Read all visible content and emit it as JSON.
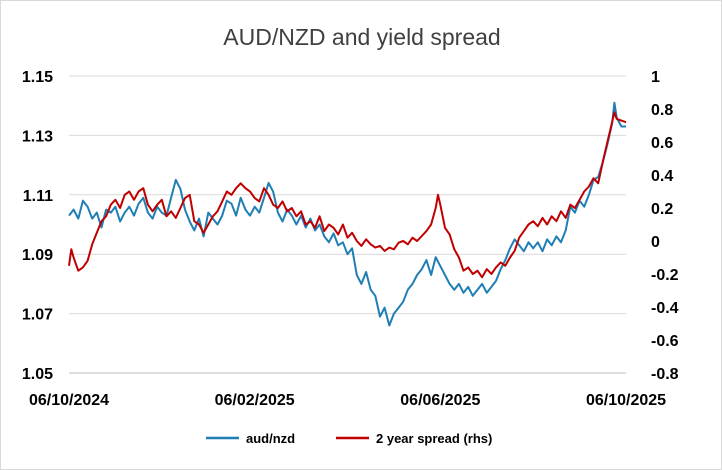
{
  "chart_data": {
    "type": "line",
    "title": "AUD/NZD and yield spread",
    "grid": true,
    "legend_position": "bottom",
    "x_tick_labels": [
      "06/10/2024",
      "06/02/2025",
      "06/06/2025",
      "06/10/2025"
    ],
    "y_left": {
      "ticks": [
        "1.05",
        "1.07",
        "1.09",
        "1.11",
        "1.13",
        "1.15"
      ],
      "range": [
        1.05,
        1.15
      ]
    },
    "y_right": {
      "ticks": [
        "-0.8",
        "-0.6",
        "-0.4",
        "-0.2",
        "0",
        "0.2",
        "0.4",
        "0.6",
        "0.8",
        "1"
      ],
      "range": [
        -0.8,
        1.0
      ]
    },
    "x_range": [
      0,
      12
    ],
    "series": [
      {
        "name": "aud/nzd",
        "axis": "left",
        "color": "#1f7fb4",
        "points": [
          [
            0.0,
            1.103
          ],
          [
            0.1,
            1.105
          ],
          [
            0.2,
            1.102
          ],
          [
            0.3,
            1.108
          ],
          [
            0.4,
            1.106
          ],
          [
            0.5,
            1.102
          ],
          [
            0.6,
            1.104
          ],
          [
            0.7,
            1.099
          ],
          [
            0.8,
            1.105
          ],
          [
            0.9,
            1.104
          ],
          [
            1.0,
            1.106
          ],
          [
            1.1,
            1.101
          ],
          [
            1.2,
            1.104
          ],
          [
            1.3,
            1.106
          ],
          [
            1.4,
            1.103
          ],
          [
            1.5,
            1.107
          ],
          [
            1.6,
            1.109
          ],
          [
            1.7,
            1.104
          ],
          [
            1.8,
            1.102
          ],
          [
            1.9,
            1.106
          ],
          [
            2.0,
            1.104
          ],
          [
            2.1,
            1.103
          ],
          [
            2.2,
            1.109
          ],
          [
            2.3,
            1.115
          ],
          [
            2.4,
            1.112
          ],
          [
            2.5,
            1.105
          ],
          [
            2.6,
            1.101
          ],
          [
            2.7,
            1.098
          ],
          [
            2.8,
            1.102
          ],
          [
            2.9,
            1.096
          ],
          [
            3.0,
            1.104
          ],
          [
            3.1,
            1.102
          ],
          [
            3.2,
            1.1
          ],
          [
            3.3,
            1.103
          ],
          [
            3.4,
            1.108
          ],
          [
            3.5,
            1.107
          ],
          [
            3.6,
            1.103
          ],
          [
            3.7,
            1.109
          ],
          [
            3.8,
            1.105
          ],
          [
            3.9,
            1.103
          ],
          [
            4.0,
            1.106
          ],
          [
            4.1,
            1.104
          ],
          [
            4.2,
            1.109
          ],
          [
            4.3,
            1.114
          ],
          [
            4.4,
            1.111
          ],
          [
            4.5,
            1.104
          ],
          [
            4.6,
            1.101
          ],
          [
            4.7,
            1.105
          ],
          [
            4.8,
            1.103
          ],
          [
            4.9,
            1.1
          ],
          [
            5.0,
            1.103
          ],
          [
            5.1,
            1.099
          ],
          [
            5.2,
            1.102
          ],
          [
            5.3,
            1.098
          ],
          [
            5.4,
            1.1
          ],
          [
            5.5,
            1.096
          ],
          [
            5.6,
            1.094
          ],
          [
            5.7,
            1.097
          ],
          [
            5.8,
            1.093
          ],
          [
            5.9,
            1.094
          ],
          [
            6.0,
            1.09
          ],
          [
            6.1,
            1.092
          ],
          [
            6.2,
            1.083
          ],
          [
            6.3,
            1.08
          ],
          [
            6.4,
            1.084
          ],
          [
            6.5,
            1.078
          ],
          [
            6.6,
            1.076
          ],
          [
            6.7,
            1.069
          ],
          [
            6.8,
            1.072
          ],
          [
            6.9,
            1.066
          ],
          [
            7.0,
            1.07
          ],
          [
            7.1,
            1.072
          ],
          [
            7.2,
            1.074
          ],
          [
            7.3,
            1.078
          ],
          [
            7.4,
            1.08
          ],
          [
            7.5,
            1.083
          ],
          [
            7.6,
            1.085
          ],
          [
            7.7,
            1.088
          ],
          [
            7.8,
            1.083
          ],
          [
            7.9,
            1.089
          ],
          [
            8.0,
            1.086
          ],
          [
            8.1,
            1.083
          ],
          [
            8.2,
            1.08
          ],
          [
            8.3,
            1.078
          ],
          [
            8.4,
            1.08
          ],
          [
            8.5,
            1.077
          ],
          [
            8.6,
            1.079
          ],
          [
            8.7,
            1.076
          ],
          [
            8.8,
            1.078
          ],
          [
            8.9,
            1.08
          ],
          [
            9.0,
            1.077
          ],
          [
            9.1,
            1.079
          ],
          [
            9.2,
            1.081
          ],
          [
            9.3,
            1.085
          ],
          [
            9.4,
            1.088
          ],
          [
            9.5,
            1.092
          ],
          [
            9.6,
            1.095
          ],
          [
            9.7,
            1.093
          ],
          [
            9.8,
            1.091
          ],
          [
            9.9,
            1.094
          ],
          [
            10.0,
            1.092
          ],
          [
            10.1,
            1.094
          ],
          [
            10.2,
            1.091
          ],
          [
            10.3,
            1.095
          ],
          [
            10.4,
            1.093
          ],
          [
            10.5,
            1.096
          ],
          [
            10.6,
            1.094
          ],
          [
            10.7,
            1.098
          ],
          [
            10.8,
            1.106
          ],
          [
            10.9,
            1.104
          ],
          [
            11.0,
            1.108
          ],
          [
            11.1,
            1.106
          ],
          [
            11.2,
            1.11
          ],
          [
            11.3,
            1.115
          ],
          [
            11.4,
            1.116
          ],
          [
            11.5,
            1.121
          ],
          [
            11.6,
            1.127
          ],
          [
            11.7,
            1.134
          ],
          [
            11.75,
            1.141
          ],
          [
            11.8,
            1.136
          ],
          [
            11.9,
            1.133
          ],
          [
            12.0,
            1.133
          ]
        ]
      },
      {
        "name": "2 year spread (rhs)",
        "axis": "right",
        "color": "#c00000",
        "points": [
          [
            0.0,
            -0.15
          ],
          [
            0.05,
            -0.05
          ],
          [
            0.1,
            -0.1
          ],
          [
            0.2,
            -0.18
          ],
          [
            0.3,
            -0.16
          ],
          [
            0.4,
            -0.12
          ],
          [
            0.5,
            -0.02
          ],
          [
            0.6,
            0.05
          ],
          [
            0.7,
            0.12
          ],
          [
            0.8,
            0.15
          ],
          [
            0.9,
            0.22
          ],
          [
            1.0,
            0.25
          ],
          [
            1.1,
            0.2
          ],
          [
            1.2,
            0.28
          ],
          [
            1.3,
            0.3
          ],
          [
            1.4,
            0.25
          ],
          [
            1.5,
            0.3
          ],
          [
            1.6,
            0.32
          ],
          [
            1.7,
            0.22
          ],
          [
            1.8,
            0.18
          ],
          [
            1.9,
            0.22
          ],
          [
            2.0,
            0.25
          ],
          [
            2.1,
            0.15
          ],
          [
            2.2,
            0.18
          ],
          [
            2.3,
            0.14
          ],
          [
            2.4,
            0.2
          ],
          [
            2.5,
            0.26
          ],
          [
            2.6,
            0.28
          ],
          [
            2.7,
            0.12
          ],
          [
            2.8,
            0.1
          ],
          [
            2.9,
            0.05
          ],
          [
            3.0,
            0.1
          ],
          [
            3.1,
            0.15
          ],
          [
            3.2,
            0.18
          ],
          [
            3.3,
            0.24
          ],
          [
            3.4,
            0.3
          ],
          [
            3.5,
            0.28
          ],
          [
            3.6,
            0.32
          ],
          [
            3.7,
            0.35
          ],
          [
            3.8,
            0.32
          ],
          [
            3.9,
            0.3
          ],
          [
            4.0,
            0.26
          ],
          [
            4.1,
            0.24
          ],
          [
            4.2,
            0.32
          ],
          [
            4.3,
            0.28
          ],
          [
            4.4,
            0.22
          ],
          [
            4.5,
            0.2
          ],
          [
            4.6,
            0.24
          ],
          [
            4.7,
            0.18
          ],
          [
            4.8,
            0.2
          ],
          [
            4.9,
            0.15
          ],
          [
            5.0,
            0.18
          ],
          [
            5.1,
            0.1
          ],
          [
            5.2,
            0.12
          ],
          [
            5.3,
            0.08
          ],
          [
            5.4,
            0.15
          ],
          [
            5.5,
            0.06
          ],
          [
            5.6,
            0.1
          ],
          [
            5.7,
            0.08
          ],
          [
            5.8,
            0.04
          ],
          [
            5.9,
            0.1
          ],
          [
            6.0,
            0.02
          ],
          [
            6.1,
            0.05
          ],
          [
            6.2,
            0.0
          ],
          [
            6.3,
            -0.03
          ],
          [
            6.4,
            0.01
          ],
          [
            6.5,
            -0.02
          ],
          [
            6.6,
            -0.04
          ],
          [
            6.7,
            -0.03
          ],
          [
            6.8,
            -0.06
          ],
          [
            6.9,
            -0.04
          ],
          [
            7.0,
            -0.05
          ],
          [
            7.1,
            -0.01
          ],
          [
            7.2,
            0.0
          ],
          [
            7.3,
            -0.02
          ],
          [
            7.4,
            0.02
          ],
          [
            7.5,
            0.0
          ],
          [
            7.6,
            0.03
          ],
          [
            7.7,
            0.06
          ],
          [
            7.8,
            0.1
          ],
          [
            7.9,
            0.2
          ],
          [
            7.95,
            0.28
          ],
          [
            8.0,
            0.22
          ],
          [
            8.1,
            0.08
          ],
          [
            8.2,
            0.04
          ],
          [
            8.3,
            -0.05
          ],
          [
            8.4,
            -0.1
          ],
          [
            8.5,
            -0.18
          ],
          [
            8.6,
            -0.16
          ],
          [
            8.7,
            -0.2
          ],
          [
            8.8,
            -0.18
          ],
          [
            8.9,
            -0.22
          ],
          [
            9.0,
            -0.17
          ],
          [
            9.1,
            -0.2
          ],
          [
            9.2,
            -0.16
          ],
          [
            9.3,
            -0.13
          ],
          [
            9.4,
            -0.15
          ],
          [
            9.5,
            -0.1
          ],
          [
            9.6,
            -0.06
          ],
          [
            9.7,
            0.02
          ],
          [
            9.8,
            0.06
          ],
          [
            9.9,
            0.1
          ],
          [
            10.0,
            0.12
          ],
          [
            10.1,
            0.09
          ],
          [
            10.2,
            0.14
          ],
          [
            10.3,
            0.1
          ],
          [
            10.4,
            0.15
          ],
          [
            10.5,
            0.12
          ],
          [
            10.6,
            0.18
          ],
          [
            10.7,
            0.14
          ],
          [
            10.8,
            0.22
          ],
          [
            10.9,
            0.2
          ],
          [
            11.0,
            0.25
          ],
          [
            11.1,
            0.3
          ],
          [
            11.2,
            0.33
          ],
          [
            11.3,
            0.38
          ],
          [
            11.4,
            0.35
          ],
          [
            11.5,
            0.48
          ],
          [
            11.6,
            0.6
          ],
          [
            11.7,
            0.72
          ],
          [
            11.75,
            0.78
          ],
          [
            11.8,
            0.74
          ],
          [
            11.9,
            0.73
          ],
          [
            12.0,
            0.72
          ]
        ]
      }
    ]
  }
}
